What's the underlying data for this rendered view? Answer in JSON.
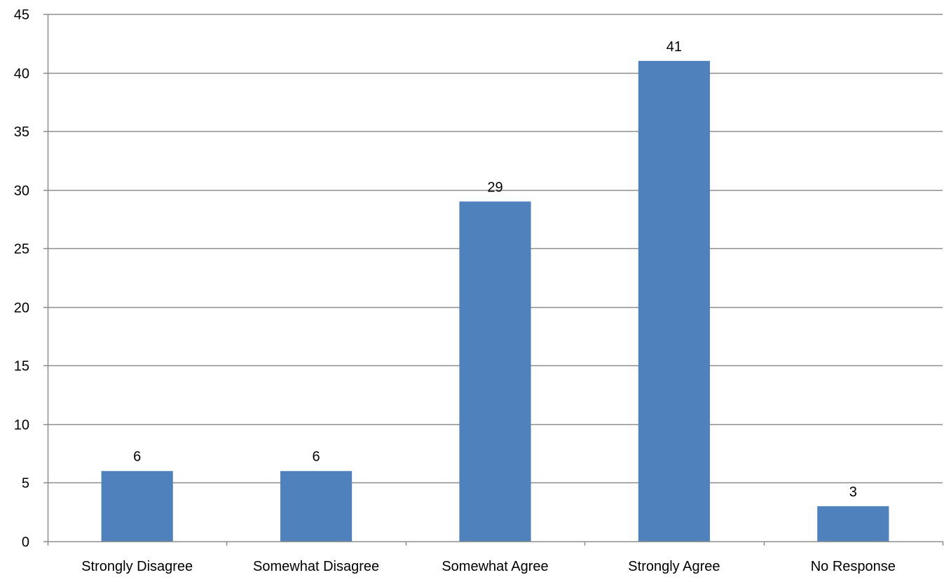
{
  "chart_data": {
    "type": "bar",
    "categories": [
      "Strongly Disagree",
      "Somewhat Disagree",
      "Somewhat Agree",
      "Strongly Agree",
      "No Response"
    ],
    "series": [
      {
        "values": [
          6,
          6,
          29,
          41,
          3
        ]
      }
    ],
    "title": "",
    "xlabel": "",
    "ylabel": "",
    "ylim": [
      0,
      45
    ],
    "y_ticks": [
      0,
      5,
      10,
      15,
      20,
      25,
      30,
      35,
      40,
      45
    ],
    "data_labels": [
      "6",
      "6",
      "29",
      "41",
      "3"
    ],
    "grid": true,
    "legend": "none",
    "colors": {
      "bar": "#4F81BD",
      "grid": "#8C8C8C",
      "axis": "#8C8C8C"
    }
  }
}
